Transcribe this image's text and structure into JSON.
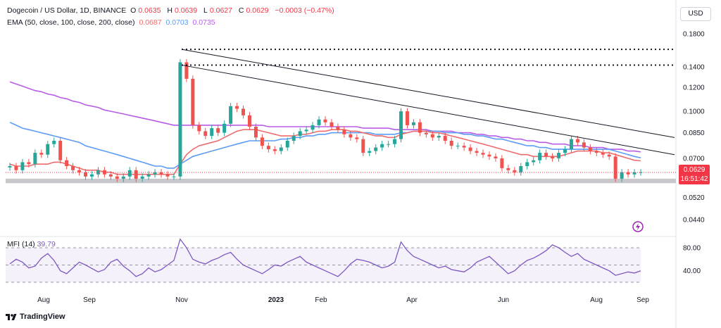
{
  "header": {
    "symbol": "Dogecoin / US Dollar, 1D, BINANCE",
    "open_label": "O",
    "open": "0.0635",
    "high_label": "H",
    "high": "0.0639",
    "low_label": "L",
    "low": "0.0627",
    "close_label": "C",
    "close": "0.0629",
    "change": "−0.0003 (−0.47%)",
    "ema_label": "EMA (50, close, 100, close, 200, close)",
    "ema50": "0.0687",
    "ema100": "0.0703",
    "ema200": "0.0735"
  },
  "currency_button": "USD",
  "last_price": {
    "price": "0.0629",
    "countdown": "16:51:42"
  },
  "mfi": {
    "label": "MFI (14)",
    "value": "39.79"
  },
  "branding": {
    "logo_text": "TradingView"
  },
  "colors": {
    "up": "#26a69a",
    "down": "#ef5350",
    "ema50": "#f06b6b",
    "ema100": "#5b9cf6",
    "ema200": "#b85ce6",
    "mfi": "#7e57c2"
  },
  "chart_data": {
    "type": "candlestick",
    "title": "Dogecoin / US Dollar, 1D, BINANCE",
    "y_ticks": [
      "0.1800",
      "0.1400",
      "0.1200",
      "0.1000",
      "0.0850",
      "0.0700",
      "0.0520",
      "0.0440"
    ],
    "y_tick_values": [
      0.18,
      0.14,
      0.12,
      0.1,
      0.085,
      0.07,
      0.052,
      0.044
    ],
    "y_scale": "log",
    "x_ticks": [
      "Aug",
      "Sep",
      "Nov",
      "2023",
      "Feb",
      "Apr",
      "Jun",
      "Aug",
      "Sep"
    ],
    "close_series": [
      0.066,
      0.064,
      0.068,
      0.067,
      0.073,
      0.072,
      0.078,
      0.08,
      0.069,
      0.066,
      0.064,
      0.063,
      0.061,
      0.062,
      0.064,
      0.062,
      0.061,
      0.06,
      0.061,
      0.064,
      0.06,
      0.061,
      0.062,
      0.063,
      0.062,
      0.061,
      0.061,
      0.145,
      0.128,
      0.09,
      0.086,
      0.083,
      0.088,
      0.085,
      0.091,
      0.104,
      0.102,
      0.097,
      0.089,
      0.082,
      0.077,
      0.075,
      0.074,
      0.076,
      0.08,
      0.083,
      0.086,
      0.087,
      0.09,
      0.094,
      0.092,
      0.089,
      0.087,
      0.084,
      0.082,
      0.081,
      0.073,
      0.074,
      0.076,
      0.078,
      0.078,
      0.081,
      0.1,
      0.09,
      0.092,
      0.085,
      0.084,
      0.082,
      0.083,
      0.08,
      0.077,
      0.077,
      0.076,
      0.074,
      0.073,
      0.072,
      0.071,
      0.07,
      0.065,
      0.064,
      0.063,
      0.066,
      0.068,
      0.069,
      0.073,
      0.071,
      0.07,
      0.073,
      0.075,
      0.081,
      0.079,
      0.076,
      0.074,
      0.073,
      0.072,
      0.071,
      0.06,
      0.063,
      0.062,
      0.063,
      0.063
    ],
    "ema50": [
      0.067,
      0.066,
      0.066,
      0.066,
      0.067,
      0.067,
      0.067,
      0.068,
      0.068,
      0.067,
      0.066,
      0.065,
      0.064,
      0.064,
      0.064,
      0.063,
      0.063,
      0.062,
      0.062,
      0.062,
      0.062,
      0.062,
      0.062,
      0.062,
      0.062,
      0.062,
      0.062,
      0.067,
      0.072,
      0.075,
      0.077,
      0.078,
      0.079,
      0.08,
      0.082,
      0.084,
      0.086,
      0.087,
      0.087,
      0.087,
      0.086,
      0.085,
      0.084,
      0.083,
      0.083,
      0.083,
      0.084,
      0.084,
      0.085,
      0.086,
      0.086,
      0.087,
      0.087,
      0.087,
      0.086,
      0.086,
      0.085,
      0.084,
      0.083,
      0.083,
      0.082,
      0.082,
      0.084,
      0.085,
      0.086,
      0.086,
      0.086,
      0.085,
      0.085,
      0.084,
      0.083,
      0.082,
      0.081,
      0.08,
      0.079,
      0.078,
      0.077,
      0.076,
      0.075,
      0.074,
      0.073,
      0.072,
      0.072,
      0.071,
      0.071,
      0.071,
      0.071,
      0.071,
      0.072,
      0.073,
      0.074,
      0.074,
      0.074,
      0.074,
      0.073,
      0.073,
      0.072,
      0.071,
      0.07,
      0.069,
      0.0687
    ],
    "ema100": [
      0.092,
      0.09,
      0.088,
      0.087,
      0.086,
      0.085,
      0.084,
      0.083,
      0.082,
      0.081,
      0.08,
      0.079,
      0.077,
      0.076,
      0.075,
      0.074,
      0.073,
      0.072,
      0.071,
      0.07,
      0.069,
      0.068,
      0.067,
      0.066,
      0.066,
      0.065,
      0.065,
      0.067,
      0.069,
      0.071,
      0.072,
      0.073,
      0.074,
      0.075,
      0.076,
      0.077,
      0.078,
      0.079,
      0.08,
      0.08,
      0.08,
      0.08,
      0.08,
      0.081,
      0.081,
      0.082,
      0.082,
      0.083,
      0.083,
      0.084,
      0.084,
      0.085,
      0.085,
      0.085,
      0.085,
      0.085,
      0.085,
      0.085,
      0.084,
      0.084,
      0.084,
      0.084,
      0.085,
      0.085,
      0.086,
      0.086,
      0.086,
      0.086,
      0.086,
      0.085,
      0.085,
      0.085,
      0.084,
      0.084,
      0.083,
      0.083,
      0.082,
      0.081,
      0.081,
      0.08,
      0.079,
      0.078,
      0.077,
      0.077,
      0.076,
      0.076,
      0.075,
      0.075,
      0.075,
      0.075,
      0.075,
      0.075,
      0.075,
      0.075,
      0.075,
      0.075,
      0.074,
      0.073,
      0.072,
      0.071,
      0.0703
    ],
    "ema200": [
      0.125,
      0.123,
      0.121,
      0.119,
      0.117,
      0.116,
      0.114,
      0.113,
      0.111,
      0.11,
      0.108,
      0.107,
      0.105,
      0.104,
      0.103,
      0.101,
      0.1,
      0.099,
      0.098,
      0.097,
      0.096,
      0.095,
      0.094,
      0.093,
      0.092,
      0.091,
      0.09,
      0.09,
      0.09,
      0.09,
      0.09,
      0.09,
      0.09,
      0.09,
      0.09,
      0.09,
      0.09,
      0.09,
      0.09,
      0.09,
      0.09,
      0.089,
      0.089,
      0.089,
      0.089,
      0.089,
      0.089,
      0.089,
      0.089,
      0.089,
      0.089,
      0.089,
      0.089,
      0.089,
      0.089,
      0.089,
      0.088,
      0.088,
      0.088,
      0.088,
      0.088,
      0.087,
      0.087,
      0.087,
      0.087,
      0.087,
      0.087,
      0.086,
      0.086,
      0.086,
      0.086,
      0.085,
      0.085,
      0.085,
      0.084,
      0.084,
      0.083,
      0.083,
      0.082,
      0.082,
      0.081,
      0.081,
      0.08,
      0.08,
      0.079,
      0.079,
      0.078,
      0.078,
      0.078,
      0.077,
      0.077,
      0.077,
      0.076,
      0.076,
      0.076,
      0.075,
      0.075,
      0.075,
      0.074,
      0.074,
      0.0735
    ],
    "resistance_levels": [
      0.16,
      0.142
    ],
    "trendlines": [
      {
        "from": 0.142,
        "to": 0.072
      },
      {
        "from": 0.16,
        "to": 0.082
      }
    ],
    "support_band": [
      0.058,
      0.06
    ],
    "mfi_ticks": [
      "80.00",
      "40.00"
    ],
    "mfi_tick_values": [
      80,
      40
    ],
    "mfi_band": [
      20,
      80
    ],
    "mfi_series": [
      52,
      60,
      55,
      45,
      48,
      62,
      70,
      58,
      40,
      35,
      45,
      55,
      50,
      44,
      38,
      42,
      55,
      60,
      48,
      40,
      30,
      35,
      45,
      38,
      42,
      50,
      58,
      95,
      80,
      60,
      55,
      52,
      58,
      62,
      68,
      72,
      60,
      50,
      45,
      40,
      35,
      42,
      50,
      48,
      55,
      60,
      65,
      55,
      50,
      45,
      40,
      35,
      30,
      40,
      52,
      60,
      58,
      55,
      50,
      45,
      48,
      55,
      90,
      75,
      65,
      60,
      55,
      50,
      45,
      48,
      42,
      40,
      38,
      45,
      55,
      60,
      65,
      55,
      45,
      35,
      40,
      50,
      58,
      62,
      68,
      75,
      85,
      80,
      72,
      65,
      70,
      60,
      55,
      50,
      45,
      40,
      32,
      35,
      38,
      36,
      39.79
    ]
  }
}
